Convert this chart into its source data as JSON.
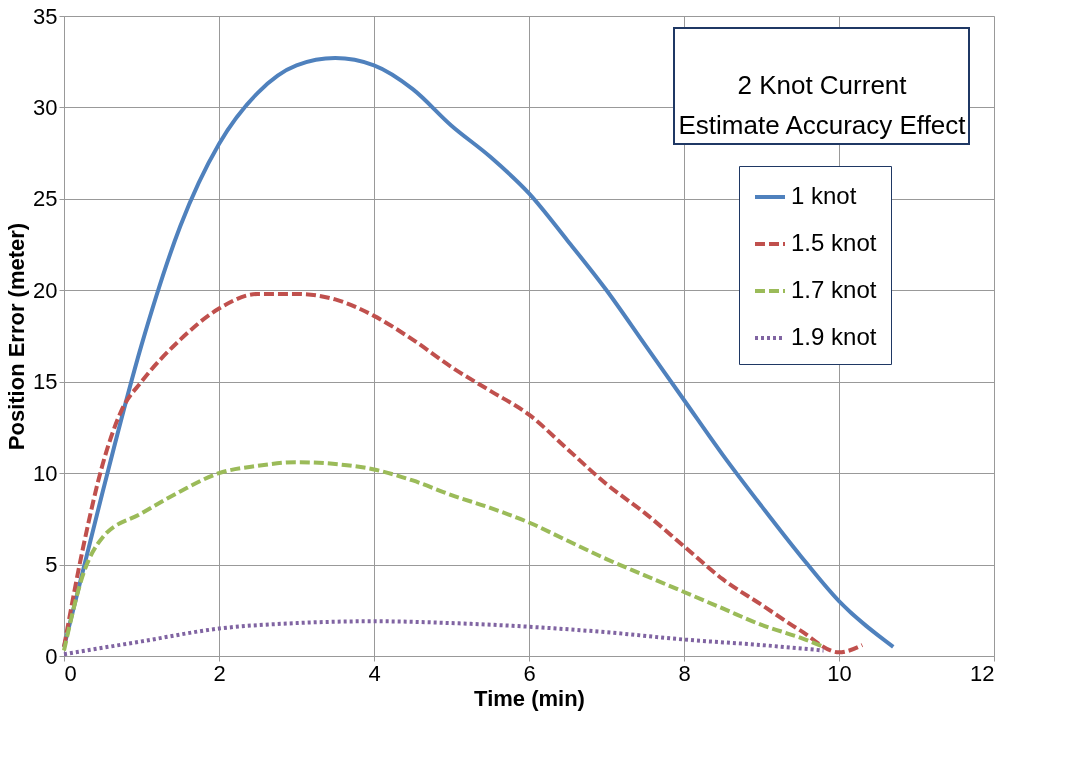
{
  "chart_data": {
    "type": "line",
    "title": "2 Knot Current\nEstimate Accuracy Effect",
    "xlabel": "Time (min)",
    "ylabel": "Position Error (meter)",
    "xlim": [
      0,
      12
    ],
    "xticks": [
      0,
      2,
      4,
      6,
      8,
      10,
      12
    ],
    "ylim": [
      0,
      35
    ],
    "yticks": [
      0,
      5,
      10,
      15,
      20,
      25,
      30,
      35
    ],
    "grid": true,
    "legend": "right",
    "marker": "none",
    "series": [
      {
        "name": "1 knot",
        "color": "#4f81bd",
        "line_style": "solid",
        "x": [
          0,
          0.5,
          1,
          1.5,
          2,
          2.5,
          3,
          3.5,
          4,
          4.5,
          5,
          5.5,
          6,
          6.5,
          7,
          7.5,
          8,
          8.5,
          9,
          9.5,
          10,
          10.7
        ],
        "values": [
          0.5,
          9,
          17,
          23.5,
          28,
          30.8,
          32.3,
          32.7,
          32.3,
          31,
          29,
          27.3,
          25.3,
          22.7,
          20,
          17,
          14,
          11,
          8.2,
          5.5,
          3,
          0.5
        ]
      },
      {
        "name": "1.5 knot",
        "color": "#c0504d",
        "line_style": "dashed",
        "x": [
          0,
          0.25,
          0.5,
          0.75,
          1,
          1.5,
          2,
          2.5,
          3,
          3.5,
          4,
          4.5,
          5,
          5.5,
          6,
          6.5,
          7,
          7.5,
          8,
          8.5,
          9,
          9.5,
          10,
          10.3
        ],
        "values": [
          0.5,
          6,
          10.5,
          13.5,
          15,
          17.3,
          19,
          19.8,
          19.8,
          19.5,
          18.6,
          17.3,
          15.8,
          14.5,
          13.2,
          11.3,
          9.4,
          7.8,
          6,
          4.2,
          2.8,
          1.4,
          0.2,
          0.6
        ]
      },
      {
        "name": "1.7 knot",
        "color": "#9bbb59",
        "line_style": "dashed",
        "x": [
          0,
          0.25,
          0.5,
          1,
          1.5,
          2,
          2.5,
          3,
          3.5,
          4,
          4.5,
          5,
          5.5,
          6,
          6.5,
          7,
          7.5,
          8,
          8.5,
          9,
          9.5,
          9.8
        ],
        "values": [
          0.3,
          4.5,
          6.5,
          7.8,
          9,
          10,
          10.4,
          10.6,
          10.5,
          10.2,
          9.6,
          8.8,
          8.1,
          7.3,
          6.3,
          5.3,
          4.4,
          3.5,
          2.6,
          1.7,
          1.0,
          0.5
        ]
      },
      {
        "name": "1.9 knot",
        "color": "#8064a2",
        "line_style": "dotted",
        "x": [
          0,
          1,
          2,
          3,
          4,
          5,
          6,
          7,
          8,
          9,
          9.8
        ],
        "values": [
          0.1,
          0.8,
          1.5,
          1.8,
          1.9,
          1.8,
          1.6,
          1.3,
          0.9,
          0.6,
          0.3
        ]
      }
    ]
  }
}
